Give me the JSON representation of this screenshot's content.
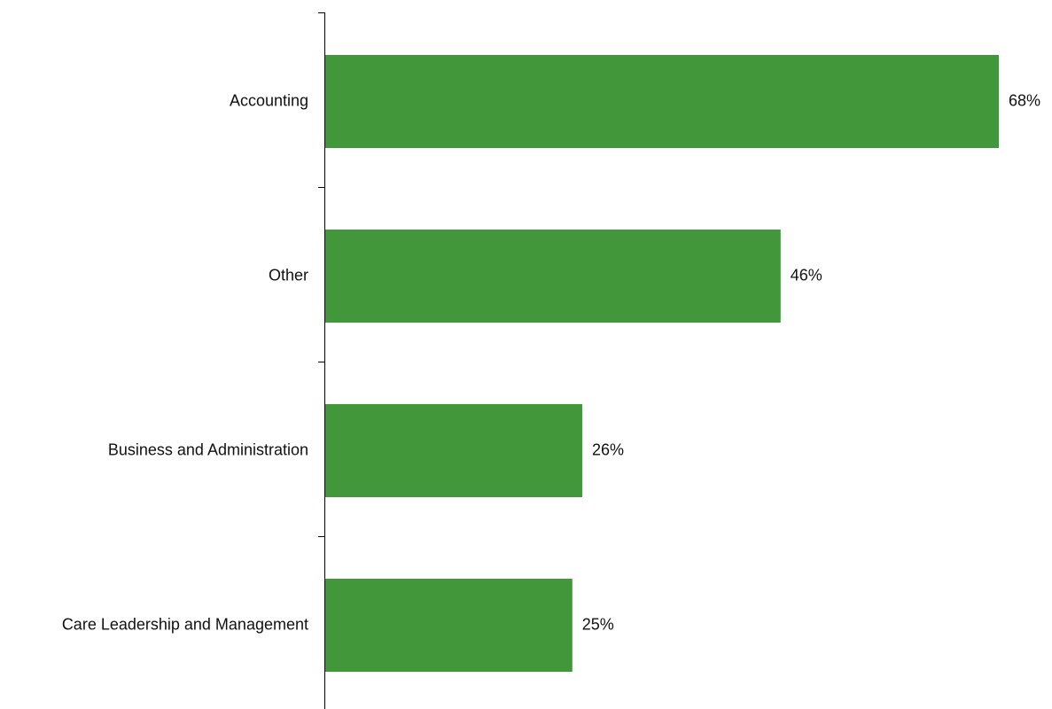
{
  "chart_data": {
    "type": "bar",
    "orientation": "horizontal",
    "categories": [
      "Accounting",
      "Other",
      "Business and Administration",
      "Care Leadership and Management"
    ],
    "values": [
      68,
      46,
      26,
      25
    ],
    "value_labels": [
      "68%",
      "46%",
      "26%",
      "25%"
    ],
    "unit": "%",
    "xlim": [
      0,
      68
    ],
    "bar_color": "#43973b",
    "grid": false,
    "legend": "none",
    "title": "",
    "xlabel": "",
    "ylabel": ""
  }
}
